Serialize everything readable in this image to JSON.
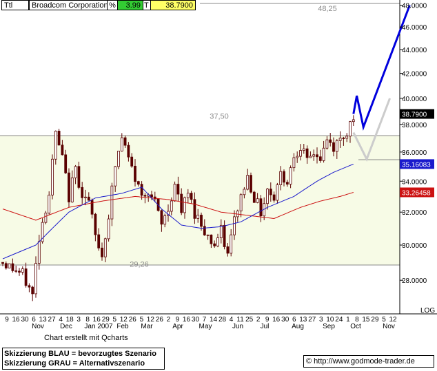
{
  "header": {
    "symbol": "Ttl",
    "name": "Broadcom Corporation",
    "pct_label": "%",
    "pct_value": "3.99",
    "t_label": "T",
    "last_price": "38.7900"
  },
  "footer": {
    "credit": "Chart erstellt mit Qcharts",
    "scenario_blue": "Skizzierung BLAU = bevorzugtes Szenario",
    "scenario_gray": "Skizzierung GRAU = Alternativszenario",
    "website": "http://www.godmode-trader.de"
  },
  "colors": {
    "background": "#ffffff",
    "range_fill": "#f7fbe6",
    "price_bars": "#5a0000",
    "ma_short": "#1a1acc",
    "ma_long": "#cc1111",
    "blue_scenario": "#0000dd",
    "gray_scenario": "#cccccc",
    "pct_box": "#33cc33",
    "last_box": "#ffff66"
  },
  "chart_data": {
    "type": "candlestick",
    "y_scale": "log",
    "y_axis_label": "LOG",
    "ylim": [
      26.5,
      48.3
    ],
    "y_ticks": [
      28,
      30,
      32,
      34,
      36,
      38,
      40,
      42,
      44,
      46,
      48
    ],
    "y_tick_labels": [
      "28.0000",
      "30.0000",
      "32.0000",
      "34.0000",
      "36.0000",
      "38.0000",
      "40.0000",
      "42.0000",
      "44.0000",
      "46.0000",
      "48.0000"
    ],
    "grid": false,
    "x_day_labels": [
      "9",
      "16",
      "30",
      "6",
      "13",
      "27",
      "4",
      "18",
      "3",
      "8",
      "16",
      "29",
      "5",
      "12",
      "26",
      "5",
      "12",
      "26",
      "2",
      "9",
      "16",
      "30",
      "7",
      "14",
      "28",
      "4",
      "11",
      "25",
      "2",
      "9",
      "16",
      "30",
      "6",
      "13",
      "27",
      "3",
      "10",
      "24",
      "1",
      "8",
      "15",
      "29",
      "5",
      "12"
    ],
    "x_month_labels": [
      "Nov",
      "Dec",
      "Jan 2007",
      "Feb",
      "Mar",
      "Apr",
      "May",
      "Jun",
      "Jul",
      "Aug",
      "Sep",
      "Oct",
      "Nov"
    ],
    "price_levels": [
      {
        "label": "48,25",
        "value": 48.25
      },
      {
        "label": "37,50",
        "value": 37.5
      },
      {
        "label": "29,26",
        "value": 29.26
      }
    ],
    "last_values": [
      {
        "name": "price",
        "value": 38.79,
        "label": "38.7900"
      },
      {
        "name": "ma_short",
        "value": 35.16083,
        "label": "35.16083"
      },
      {
        "name": "ma_long",
        "value": 33.26458,
        "label": "33.26458"
      }
    ],
    "close_path": [
      [
        0,
        29.0
      ],
      [
        6,
        28.3
      ],
      [
        9,
        27.2
      ],
      [
        11,
        30.5
      ],
      [
        14,
        33.2
      ],
      [
        16,
        37.3
      ],
      [
        18,
        35.5
      ],
      [
        20,
        33.0
      ],
      [
        22,
        34.8
      ],
      [
        24,
        33.2
      ],
      [
        26,
        32.6
      ],
      [
        28,
        30.5
      ],
      [
        30,
        29.4
      ],
      [
        32,
        31.8
      ],
      [
        34,
        35.0
      ],
      [
        36,
        37.0
      ],
      [
        38,
        35.5
      ],
      [
        40,
        34.2
      ],
      [
        42,
        33.0
      ],
      [
        44,
        33.5
      ],
      [
        46,
        32.5
      ],
      [
        48,
        31.2
      ],
      [
        50,
        32.2
      ],
      [
        52,
        33.8
      ],
      [
        54,
        32.0
      ],
      [
        56,
        33.2
      ],
      [
        58,
        32.0
      ],
      [
        60,
        31.3
      ],
      [
        62,
        30.5
      ],
      [
        64,
        30.0
      ],
      [
        66,
        30.8
      ],
      [
        68,
        29.4
      ],
      [
        70,
        31.5
      ],
      [
        72,
        33.0
      ],
      [
        74,
        34.3
      ],
      [
        76,
        33.0
      ],
      [
        78,
        32.0
      ],
      [
        80,
        33.5
      ],
      [
        82,
        33.0
      ],
      [
        84,
        34.5
      ],
      [
        86,
        34.0
      ],
      [
        88,
        35.8
      ],
      [
        90,
        36.5
      ],
      [
        92,
        35.2
      ],
      [
        94,
        36.0
      ],
      [
        96,
        35.5
      ],
      [
        98,
        36.8
      ],
      [
        100,
        36.3
      ],
      [
        102,
        36.9
      ],
      [
        104,
        37.5
      ],
      [
        106,
        38.79
      ]
    ],
    "ma_short": [
      [
        0,
        29.2
      ],
      [
        10,
        30.0
      ],
      [
        20,
        32.0
      ],
      [
        28,
        32.9
      ],
      [
        36,
        33.2
      ],
      [
        42,
        33.6
      ],
      [
        48,
        32.2
      ],
      [
        54,
        31.2
      ],
      [
        60,
        31.0
      ],
      [
        66,
        31.1
      ],
      [
        72,
        31.4
      ],
      [
        80,
        32.3
      ],
      [
        88,
        33.0
      ],
      [
        95,
        34.0
      ],
      [
        100,
        34.6
      ],
      [
        106,
        35.16083
      ]
    ],
    "ma_long": [
      [
        0,
        32.2
      ],
      [
        10,
        31.5
      ],
      [
        20,
        32.3
      ],
      [
        30,
        32.7
      ],
      [
        40,
        33.0
      ],
      [
        50,
        32.8
      ],
      [
        58,
        32.5
      ],
      [
        66,
        32.0
      ],
      [
        74,
        31.8
      ],
      [
        82,
        31.6
      ],
      [
        90,
        32.3
      ],
      [
        96,
        32.7
      ],
      [
        102,
        33.0
      ],
      [
        106,
        33.26458
      ]
    ],
    "blue_scenario": [
      [
        106,
        38.79
      ],
      [
        107,
        40.2
      ],
      [
        109,
        37.8
      ],
      [
        123,
        48.0
      ]
    ],
    "gray_scenario": [
      [
        106,
        37.4
      ],
      [
        110,
        35.5
      ],
      [
        117,
        40.0
      ]
    ]
  }
}
